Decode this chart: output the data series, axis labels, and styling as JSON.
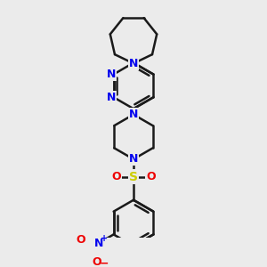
{
  "bg_color": "#ebebeb",
  "line_color": "#1a1a1a",
  "N_color": "#0000ee",
  "S_color": "#cccc00",
  "O_color": "#ee0000",
  "bond_lw": 1.8,
  "figsize": [
    3.0,
    3.0
  ],
  "dpi": 100,
  "xlim": [
    -1.5,
    1.5
  ],
  "ylim": [
    -4.2,
    3.2
  ]
}
